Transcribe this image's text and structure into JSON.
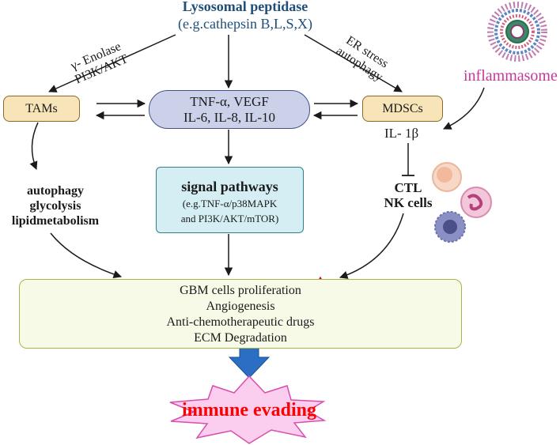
{
  "header": {
    "title": "Lysosomal peptidase",
    "subtitle": "(e.g.cathepsin B,L,S,X)"
  },
  "left_route": {
    "line1": "γ- Enolase",
    "line2": "PI3K/AKT"
  },
  "right_route": {
    "line1": "ER stress",
    "line2": "autophagy"
  },
  "inflammasome": {
    "label": "inflammasome"
  },
  "tams": {
    "label": "TAMs"
  },
  "mdscs": {
    "label": "MDSCs"
  },
  "cytokines": {
    "line1": "TNF-α, VEGF",
    "line2": "IL-6, IL-8, IL-10"
  },
  "il1b": {
    "label": "IL- 1β"
  },
  "metabolism": {
    "line1": "autophagy",
    "line2": "glycolysis",
    "line3": "lipidmetabolism"
  },
  "signal": {
    "title": "signal pathways",
    "sub1": "(e.g.TNF-α/p38MAPK",
    "sub2": "and PI3K/AKT/mTOR)"
  },
  "immune_cells": {
    "line1": "CTL",
    "line2": "NK cells"
  },
  "outcomes": {
    "items": [
      "GBM cells proliferation",
      "Angiogenesis",
      "Anti-chemotherapeutic drugs",
      "ECM Degradation"
    ]
  },
  "result": {
    "label": "immune evading"
  },
  "colors": {
    "title_blue": "#1f4e79",
    "tam_fill": "#f7e4b8",
    "cytokine_fill": "#ccd1ea",
    "signal_fill": "#d4eef3",
    "outcome_fill": "#f7fae7",
    "burst_fill": "#fbcdee",
    "arrow_blue": "#2a6fc4",
    "up_arrow_red": "#e01010",
    "inflammasome_pink": "#c43a9a"
  }
}
